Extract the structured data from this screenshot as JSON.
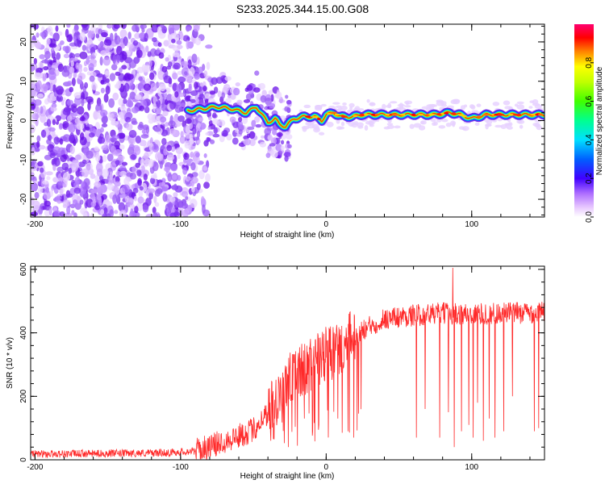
{
  "title": "S233.2025.344.15.00.G08",
  "chart_data": [
    {
      "type": "heatmap",
      "xlabel": "Height of straight line (km)",
      "ylabel": "Frequency (Hz)",
      "xlim": [
        -203,
        150
      ],
      "ylim": [
        -24.5,
        24.5
      ],
      "xticks": [
        -200,
        -100,
        0,
        100
      ],
      "yticks": [
        -20,
        -10,
        0,
        10,
        20
      ],
      "colorbar": {
        "label": "Normalized spectral amplitude",
        "range": [
          0,
          1
        ],
        "ticks": [
          0.0,
          0.2,
          0.4,
          0.6,
          0.8
        ],
        "tick_labels": [
          "0.0",
          "0.2",
          "0.4",
          "0.6",
          "0.8"
        ]
      },
      "ridge": [
        {
          "x": -95,
          "f": 2.5
        },
        {
          "x": -85,
          "f": 3.0
        },
        {
          "x": -75,
          "f": 3.5
        },
        {
          "x": -65,
          "f": 3.0
        },
        {
          "x": -55,
          "f": 2.0
        },
        {
          "x": -48,
          "f": 3.5
        },
        {
          "x": -44,
          "f": 1.5
        },
        {
          "x": -40,
          "f": -0.5
        },
        {
          "x": -35,
          "f": 0.5
        },
        {
          "x": -32,
          "f": -1.0
        },
        {
          "x": -28,
          "f": -1.5
        },
        {
          "x": -22,
          "f": 0.5
        },
        {
          "x": -15,
          "f": 1.0
        },
        {
          "x": -8,
          "f": 1.0
        },
        {
          "x": -3,
          "f": 0.0
        },
        {
          "x": 0,
          "f": 1.5
        },
        {
          "x": 5,
          "f": 2.0
        },
        {
          "x": 10,
          "f": 1.0
        },
        {
          "x": 18,
          "f": 1.0
        },
        {
          "x": 25,
          "f": 1.5
        },
        {
          "x": 40,
          "f": 1.5
        },
        {
          "x": 60,
          "f": 1.5
        },
        {
          "x": 75,
          "f": 1.5
        },
        {
          "x": 85,
          "f": 2.0
        },
        {
          "x": 92,
          "f": 1.5
        },
        {
          "x": 100,
          "f": 0.5
        },
        {
          "x": 110,
          "f": 1.5
        },
        {
          "x": 130,
          "f": 1.5
        },
        {
          "x": 150,
          "f": 1.5
        }
      ]
    },
    {
      "type": "line",
      "xlabel": "Height of straight line (km)",
      "ylabel": "SNR (10 * v/v)",
      "xlim": [
        -203,
        150
      ],
      "ylim": [
        0,
        610
      ],
      "xticks": [
        -200,
        -100,
        0,
        100
      ],
      "yticks": [
        0,
        200,
        400,
        600
      ],
      "color": "#ff2a2a",
      "envelope": [
        {
          "x": -203,
          "y": 18
        },
        {
          "x": -150,
          "y": 20
        },
        {
          "x": -110,
          "y": 22
        },
        {
          "x": -90,
          "y": 28
        },
        {
          "x": -80,
          "y": 40
        },
        {
          "x": -70,
          "y": 60
        },
        {
          "x": -60,
          "y": 75
        },
        {
          "x": -50,
          "y": 95
        },
        {
          "x": -40,
          "y": 150
        },
        {
          "x": -30,
          "y": 230
        },
        {
          "x": -20,
          "y": 270
        },
        {
          "x": -10,
          "y": 300
        },
        {
          "x": 0,
          "y": 330
        },
        {
          "x": 10,
          "y": 350
        },
        {
          "x": 20,
          "y": 390
        },
        {
          "x": 30,
          "y": 420
        },
        {
          "x": 40,
          "y": 445
        },
        {
          "x": 60,
          "y": 455
        },
        {
          "x": 80,
          "y": 462
        },
        {
          "x": 100,
          "y": 458
        },
        {
          "x": 120,
          "y": 462
        },
        {
          "x": 150,
          "y": 465
        }
      ],
      "dropouts": [
        {
          "x": 62,
          "y": 70
        },
        {
          "x": 68,
          "y": 160
        },
        {
          "x": 78,
          "y": 70
        },
        {
          "x": 84,
          "y": 150
        },
        {
          "x": 88,
          "y": 40
        },
        {
          "x": 93,
          "y": 90
        },
        {
          "x": 98,
          "y": 110
        },
        {
          "x": 101,
          "y": 70
        },
        {
          "x": 104,
          "y": 180
        },
        {
          "x": 108,
          "y": 60
        },
        {
          "x": 112,
          "y": 130
        },
        {
          "x": 116,
          "y": 70
        },
        {
          "x": 122,
          "y": 90
        },
        {
          "x": 128,
          "y": 200
        },
        {
          "x": 143,
          "y": 90
        },
        {
          "x": 146,
          "y": 100
        },
        {
          "x": -38,
          "y": 60
        },
        {
          "x": -26,
          "y": 40
        },
        {
          "x": -15,
          "y": 130
        },
        {
          "x": -5,
          "y": 110
        },
        {
          "x": 8,
          "y": 130
        },
        {
          "x": 15,
          "y": 90
        },
        {
          "x": 19,
          "y": 70
        }
      ],
      "peak": {
        "x": 87,
        "y": 605
      }
    }
  ]
}
